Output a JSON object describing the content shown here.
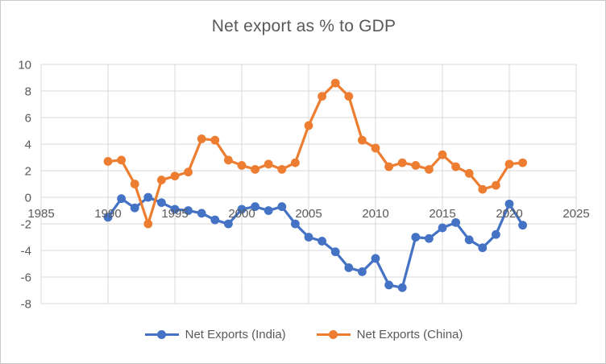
{
  "title": "Net export as % to GDP",
  "colors": {
    "india": "#4472C4",
    "china": "#ED7D31",
    "grid": "#D9D9D9",
    "text": "#595959",
    "figure_border": "#C9C9C9"
  },
  "legend": {
    "items": [
      {
        "label": "Net Exports (India)",
        "color_key": "india"
      },
      {
        "label": "Net Exports (China)",
        "color_key": "china"
      }
    ]
  },
  "chart_data": {
    "type": "line",
    "title": "Net export as % to GDP",
    "xlabel": "",
    "ylabel": "",
    "grid": true,
    "legend_position": "bottom",
    "xlim": [
      1985,
      2025
    ],
    "ylim": [
      -8,
      10
    ],
    "x_ticks": [
      1985,
      1990,
      1995,
      2000,
      2005,
      2010,
      2015,
      2020,
      2025
    ],
    "y_ticks": [
      10,
      8,
      6,
      4,
      2,
      0,
      -2,
      -4,
      -6,
      -8
    ],
    "x": [
      1990,
      1991,
      1992,
      1993,
      1994,
      1995,
      1996,
      1997,
      1998,
      1999,
      2000,
      2001,
      2002,
      2003,
      2004,
      2005,
      2006,
      2007,
      2008,
      2009,
      2010,
      2011,
      2012,
      2013,
      2014,
      2015,
      2016,
      2017,
      2018,
      2019,
      2020,
      2021
    ],
    "series": [
      {
        "name": "Net Exports (India)",
        "color_key": "india",
        "values": [
          -1.5,
          -0.1,
          -0.8,
          0.0,
          -0.4,
          -0.9,
          -1.0,
          -1.2,
          -1.7,
          -2.0,
          -0.9,
          -0.7,
          -1.0,
          -0.7,
          -2.0,
          -3.0,
          -3.3,
          -4.1,
          -5.3,
          -5.6,
          -4.6,
          -6.6,
          -6.8,
          -3.0,
          -3.1,
          -2.3,
          -1.9,
          -3.2,
          -3.8,
          -2.8,
          -0.5,
          -2.1
        ]
      },
      {
        "name": "Net Exports (China)",
        "color_key": "china",
        "values": [
          2.7,
          2.8,
          1.0,
          -2.0,
          1.3,
          1.6,
          1.9,
          4.4,
          4.3,
          2.8,
          2.4,
          2.1,
          2.5,
          2.1,
          2.6,
          5.4,
          7.6,
          8.6,
          7.6,
          4.3,
          3.7,
          2.3,
          2.6,
          2.4,
          2.1,
          3.2,
          2.3,
          1.8,
          0.6,
          0.9,
          2.5,
          2.6
        ]
      }
    ]
  }
}
